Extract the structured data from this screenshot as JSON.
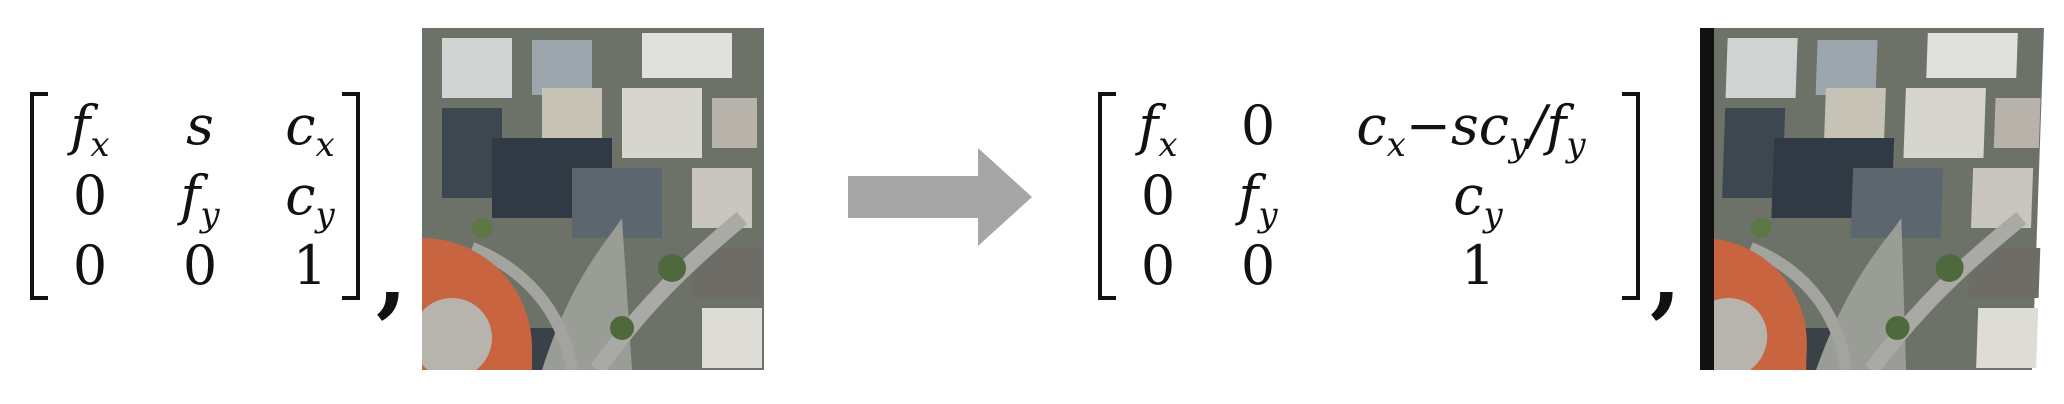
{
  "left_matrix": {
    "rows": [
      [
        "f_x",
        "s",
        "c_x"
      ],
      [
        "0",
        "f_y",
        "c_y"
      ],
      [
        "0",
        "0",
        "1"
      ]
    ]
  },
  "right_matrix": {
    "rows": [
      [
        "f_x",
        "0",
        "c_x−sc_y/f_y"
      ],
      [
        "0",
        "f_y",
        "c_y"
      ],
      [
        "0",
        "0",
        "1"
      ]
    ]
  },
  "separator": ",",
  "arrow": {
    "icon": "right-arrow-icon",
    "color": "#a6a6a6"
  },
  "images": {
    "left": {
      "content": "aerial-city-image"
    },
    "right": {
      "content": "aerial-city-image-sheared"
    }
  }
}
